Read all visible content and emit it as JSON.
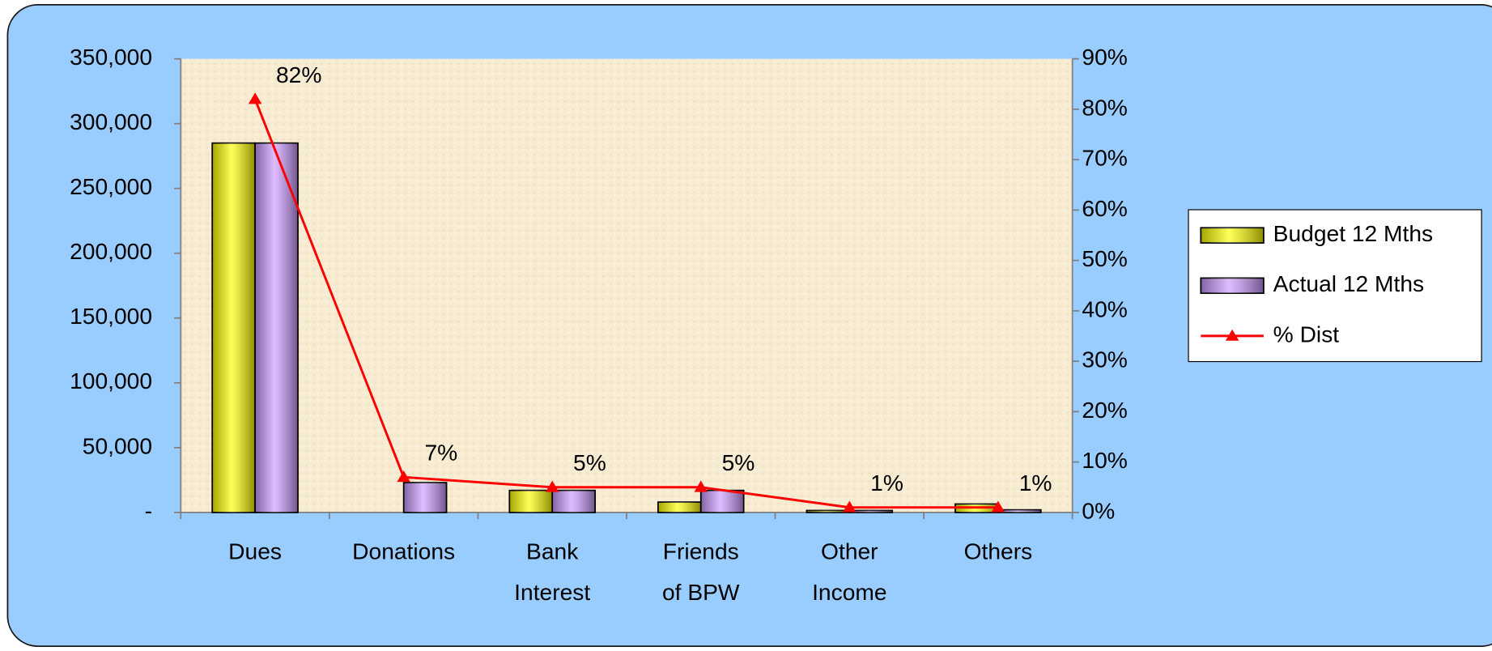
{
  "chart_data": {
    "type": "bar_line",
    "categories": [
      [
        "Dues"
      ],
      [
        "Donations"
      ],
      [
        "Bank",
        "Interest"
      ],
      [
        "Friends",
        "of BPW"
      ],
      [
        "Other",
        "Income"
      ],
      [
        "Others"
      ]
    ],
    "series": [
      {
        "name": "Budget 12 Mths",
        "color": "#ffff00",
        "type": "bar",
        "values": [
          285000,
          0,
          17000,
          8000,
          1500,
          6500
        ]
      },
      {
        "name": "Actual 12 Mths",
        "color": "#cc99ff",
        "type": "bar",
        "values": [
          285000,
          23000,
          17000,
          17000,
          1500,
          2000
        ]
      },
      {
        "name": "% Dist",
        "color": "#ff0000",
        "type": "line",
        "axis": "y2",
        "values": [
          82,
          7,
          5,
          5,
          1,
          1
        ],
        "value_labels": [
          "82%",
          "7%",
          "5%",
          "5%",
          "1%",
          "1%"
        ]
      }
    ],
    "ylim": [
      0,
      350000
    ],
    "yticks": [
      {
        "value": 0,
        "label": "-"
      },
      {
        "value": 50000,
        "label": "50,000"
      },
      {
        "value": 100000,
        "label": "100,000"
      },
      {
        "value": 150000,
        "label": "150,000"
      },
      {
        "value": 200000,
        "label": "200,000"
      },
      {
        "value": 250000,
        "label": "250,000"
      },
      {
        "value": 300000,
        "label": "300,000"
      },
      {
        "value": 350000,
        "label": "350,000"
      }
    ],
    "y2lim": [
      0,
      90
    ],
    "y2ticks": [
      {
        "value": 0,
        "label": "0%"
      },
      {
        "value": 10,
        "label": "10%"
      },
      {
        "value": 20,
        "label": "20%"
      },
      {
        "value": 30,
        "label": "30%"
      },
      {
        "value": 40,
        "label": "40%"
      },
      {
        "value": 50,
        "label": "50%"
      },
      {
        "value": 60,
        "label": "60%"
      },
      {
        "value": 70,
        "label": "70%"
      },
      {
        "value": 80,
        "label": "80%"
      },
      {
        "value": 90,
        "label": "90%"
      }
    ],
    "grid": false,
    "legend": "right"
  }
}
